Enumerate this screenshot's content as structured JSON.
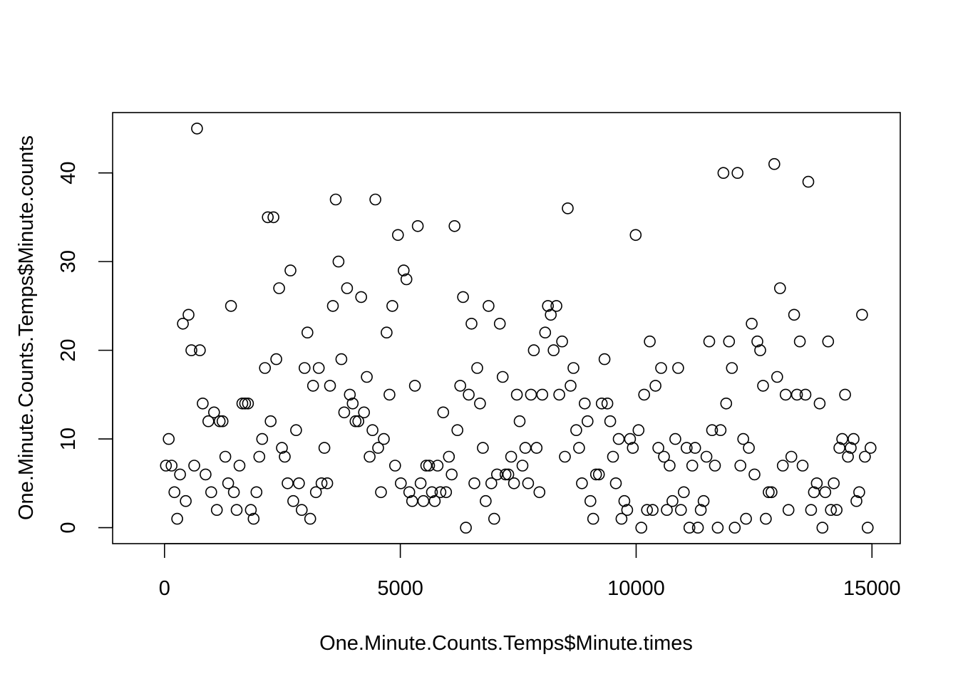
{
  "chart_data": {
    "type": "scatter",
    "title": "",
    "xlabel": "One.Minute.Counts.Temps$Minute.times",
    "ylabel": "One.Minute.Counts.Temps$Minute.counts",
    "xlim": [
      -1100,
      15600
    ],
    "ylim": [
      -1.8,
      46.8
    ],
    "x_ticks": [
      0,
      5000,
      10000,
      15000
    ],
    "x_tick_labels": [
      "0",
      "5000",
      "10000",
      "15000"
    ],
    "y_ticks": [
      0,
      10,
      20,
      30,
      40
    ],
    "y_tick_labels": [
      "0",
      "10",
      "20",
      "30",
      "40"
    ],
    "grid": false,
    "marker": "open-circle",
    "series": [
      {
        "x": [
          30,
          90,
          150,
          210,
          270,
          330,
          390,
          450,
          510,
          570,
          630,
          690,
          750,
          810,
          870,
          930,
          990,
          1050,
          1110,
          1170,
          1230,
          1290,
          1350,
          1410,
          1470,
          1530,
          1590,
          1650,
          1710,
          1770,
          1830,
          1890,
          1950,
          2010,
          2070,
          2130,
          2190,
          2250,
          2310,
          2370,
          2430,
          2490,
          2550,
          2610,
          2670,
          2730,
          2790,
          2850,
          2910,
          2970,
          3030,
          3090,
          3150,
          3210,
          3270,
          3330,
          3390,
          3450,
          3510,
          3570,
          3630,
          3690,
          3750,
          3810,
          3870,
          3930,
          3990,
          4050,
          4110,
          4170,
          4230,
          4290,
          4350,
          4410,
          4470,
          4530,
          4590,
          4650,
          4710,
          4770,
          4830,
          4890,
          4950,
          5010,
          5070,
          5130,
          5190,
          5250,
          5310,
          5370,
          5430,
          5490,
          5550,
          5610,
          5670,
          5730,
          5790,
          5850,
          5910,
          5970,
          6030,
          6090,
          6150,
          6210,
          6270,
          6330,
          6390,
          6450,
          6510,
          6570,
          6630,
          6690,
          6750,
          6810,
          6870,
          6930,
          6990,
          7050,
          7110,
          7170,
          7230,
          7290,
          7350,
          7410,
          7470,
          7530,
          7590,
          7650,
          7710,
          7770,
          7830,
          7890,
          7950,
          8010,
          8070,
          8130,
          8190,
          8250,
          8310,
          8370,
          8430,
          8490,
          8550,
          8610,
          8670,
          8730,
          8790,
          8850,
          8910,
          8970,
          9030,
          9090,
          9150,
          9210,
          9270,
          9330,
          9390,
          9450,
          9510,
          9570,
          9630,
          9690,
          9750,
          9810,
          9870,
          9930,
          9990,
          10050,
          10110,
          10170,
          10230,
          10290,
          10350,
          10410,
          10470,
          10530,
          10590,
          10650,
          10710,
          10770,
          10830,
          10890,
          10950,
          11010,
          11070,
          11130,
          11190,
          11250,
          11310,
          11370,
          11430,
          11490,
          11550,
          11610,
          11670,
          11730,
          11790,
          11850,
          11910,
          11970,
          12030,
          12090,
          12150,
          12210,
          12270,
          12330,
          12390,
          12450,
          12510,
          12570,
          12630,
          12690,
          12750,
          12810,
          12870,
          12930,
          12990,
          13050,
          13110,
          13170,
          13230,
          13290,
          13350,
          13410,
          13470,
          13530,
          13590,
          13650,
          13710,
          13770,
          13830,
          13890,
          13950,
          14010,
          14070,
          14130,
          14190,
          14250,
          14310,
          14370,
          14430,
          14490,
          14550,
          14610,
          14670,
          14730,
          14790,
          14850,
          14910,
          14970
        ],
        "y": [
          7,
          10,
          7,
          4,
          1,
          6,
          23,
          3,
          24,
          20,
          7,
          45,
          20,
          14,
          6,
          12,
          4,
          13,
          2,
          12,
          12,
          8,
          5,
          25,
          4,
          2,
          7,
          14,
          14,
          14,
          2,
          1,
          4,
          8,
          10,
          18,
          35,
          12,
          35,
          19,
          27,
          9,
          8,
          5,
          29,
          3,
          11,
          5,
          2,
          18,
          22,
          1,
          16,
          4,
          18,
          5,
          9,
          5,
          16,
          25,
          37,
          30,
          19,
          13,
          27,
          15,
          14,
          12,
          12,
          26,
          13,
          17,
          8,
          11,
          37,
          9,
          4,
          10,
          22,
          15,
          25,
          7,
          33,
          5,
          29,
          28,
          4,
          3,
          16,
          34,
          5,
          3,
          7,
          7,
          4,
          3,
          7,
          4,
          13,
          4,
          8,
          6,
          34,
          11,
          16,
          26,
          0,
          15,
          23,
          5,
          18,
          14,
          9,
          3,
          25,
          5,
          1,
          6,
          23,
          17,
          6,
          6,
          8,
          5,
          15,
          12,
          7,
          9,
          5,
          15,
          20,
          9,
          4,
          15,
          22,
          25,
          24,
          20,
          25,
          15,
          21,
          8,
          36,
          16,
          18,
          11,
          9,
          5,
          14,
          12,
          3,
          1,
          6,
          6,
          14,
          19,
          14,
          12,
          8,
          5,
          10,
          1,
          3,
          2,
          10,
          9,
          33,
          11,
          0,
          15,
          2,
          21,
          2,
          16,
          9,
          18,
          8,
          2,
          7,
          3,
          10,
          18,
          2,
          4,
          9,
          0,
          7,
          9,
          0,
          2,
          3,
          8,
          21,
          11,
          7,
          0,
          11,
          40,
          14,
          21,
          18,
          0,
          40,
          7,
          10,
          1,
          9,
          23,
          6,
          21,
          20,
          16,
          1,
          4,
          4,
          41,
          17,
          27,
          7,
          15,
          2,
          8,
          24,
          15,
          21,
          7,
          15,
          39,
          2,
          4,
          5,
          14,
          0,
          4,
          21,
          2,
          5,
          2,
          9,
          10,
          15,
          8,
          9,
          10,
          3,
          4,
          24,
          8,
          0,
          9
        ]
      }
    ]
  }
}
